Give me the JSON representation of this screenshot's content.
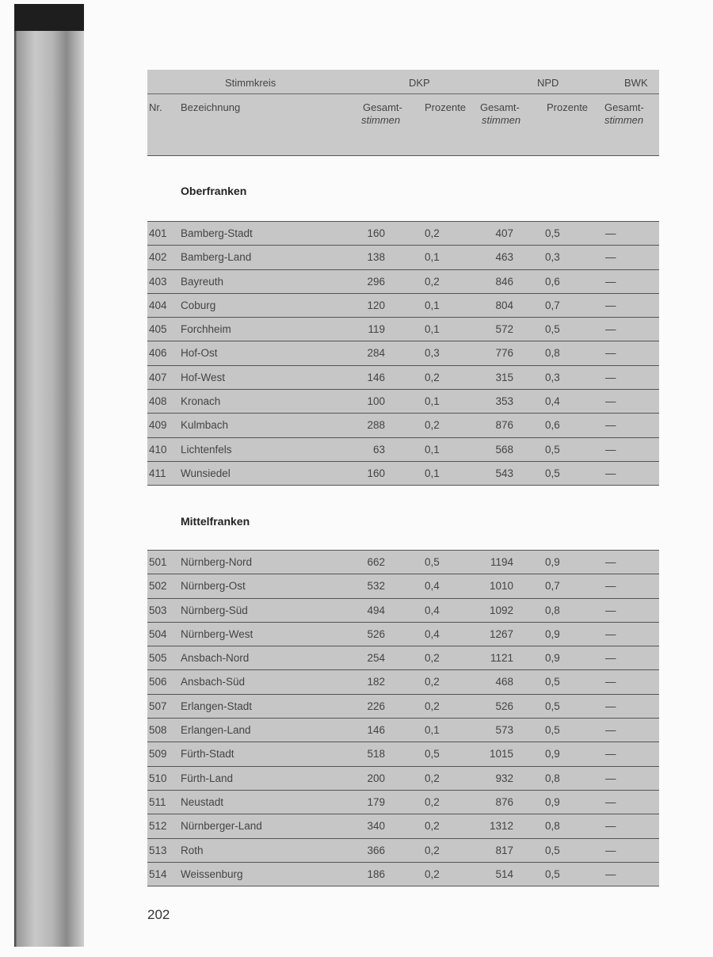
{
  "header": {
    "stimmkreis": "Stimmkreis",
    "dkp": "DKP",
    "npd": "NPD",
    "bwk": "BWK",
    "nr": "Nr.",
    "bezeichnung": "Bezeichnung",
    "gesamt1": "Gesamt-",
    "stimmen1": "stimmen",
    "prozente1": "Prozente",
    "gesamt2": "Gesamt-",
    "stimmen2": "stimmen",
    "prozente2": "Prozente",
    "gesamt3": "Gesamt-",
    "stimmen3": "stimmen"
  },
  "sections": [
    {
      "title": "Oberfranken",
      "rows": [
        [
          "401",
          "Bamberg-Stadt",
          "160",
          "0,2",
          "407",
          "0,5",
          "—"
        ],
        [
          "402",
          "Bamberg-Land",
          "138",
          "0,1",
          "463",
          "0,3",
          "—"
        ],
        [
          "403",
          "Bayreuth",
          "296",
          "0,2",
          "846",
          "0,6",
          "—"
        ],
        [
          "404",
          "Coburg",
          "120",
          "0,1",
          "804",
          "0,7",
          "—"
        ],
        [
          "405",
          "Forchheim",
          "119",
          "0,1",
          "572",
          "0,5",
          "—"
        ],
        [
          "406",
          "Hof-Ost",
          "284",
          "0,3",
          "776",
          "0,8",
          "—"
        ],
        [
          "407",
          "Hof-West",
          "146",
          "0,2",
          "315",
          "0,3",
          "—"
        ],
        [
          "408",
          "Kronach",
          "100",
          "0,1",
          "353",
          "0,4",
          "—"
        ],
        [
          "409",
          "Kulmbach",
          "288",
          "0,2",
          "876",
          "0,6",
          "—"
        ],
        [
          "410",
          "Lichtenfels",
          "63",
          "0,1",
          "568",
          "0,5",
          "—"
        ],
        [
          "411",
          "Wunsiedel",
          "160",
          "0,1",
          "543",
          "0,5",
          "—"
        ]
      ]
    },
    {
      "title": "Mittelfranken",
      "rows": [
        [
          "501",
          "Nürnberg-Nord",
          "662",
          "0,5",
          "1194",
          "0,9",
          "—"
        ],
        [
          "502",
          "Nürnberg-Ost",
          "532",
          "0,4",
          "1010",
          "0,7",
          "—"
        ],
        [
          "503",
          "Nürnberg-Süd",
          "494",
          "0,4",
          "1092",
          "0,8",
          "—"
        ],
        [
          "504",
          "Nürnberg-West",
          "526",
          "0,4",
          "1267",
          "0,9",
          "—"
        ],
        [
          "505",
          "Ansbach-Nord",
          "254",
          "0,2",
          "1121",
          "0,9",
          "—"
        ],
        [
          "506",
          "Ansbach-Süd",
          "182",
          "0,2",
          "468",
          "0,5",
          "—"
        ],
        [
          "507",
          "Erlangen-Stadt",
          "226",
          "0,2",
          "526",
          "0,5",
          "—"
        ],
        [
          "508",
          "Erlangen-Land",
          "146",
          "0,1",
          "573",
          "0,5",
          "—"
        ],
        [
          "509",
          "Fürth-Stadt",
          "518",
          "0,5",
          "1015",
          "0,9",
          "—"
        ],
        [
          "510",
          "Fürth-Land",
          "200",
          "0,2",
          "932",
          "0,8",
          "—"
        ],
        [
          "511",
          "Neustadt",
          "179",
          "0,2",
          "876",
          "0,9",
          "—"
        ],
        [
          "512",
          "Nürnberger-Land",
          "340",
          "0,2",
          "1312",
          "0,8",
          "—"
        ],
        [
          "513",
          "Roth",
          "366",
          "0,2",
          "817",
          "0,5",
          "—"
        ],
        [
          "514",
          "Weissenburg",
          "186",
          "0,2",
          "514",
          "0,5",
          "—"
        ]
      ]
    }
  ],
  "page_number": "202"
}
